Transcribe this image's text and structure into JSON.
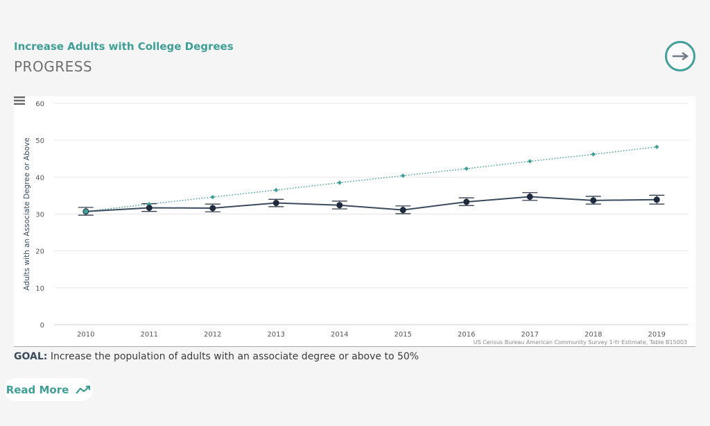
{
  "header": {
    "subtitle": "Increase Adults with College Degrees",
    "title": "PROGRESS"
  },
  "goal": {
    "label": "GOAL:",
    "text": "Increase the population of adults with an associate degree or above to 50%"
  },
  "read_more": {
    "label": "Read More",
    "icon": "trend-line-icon"
  },
  "colors": {
    "accent": "#3f9f96",
    "actual": "#3a4a5e",
    "point": "#1f2a3d"
  },
  "chart_data": {
    "type": "line",
    "title": "",
    "xlabel": "",
    "ylabel": "Adults with an Associate Degree or Above",
    "credits": "US Census Bureau American Community Survey 1-Yr Estimate, Table B15003",
    "categories": [
      "2010",
      "2011",
      "2012",
      "2013",
      "2014",
      "2015",
      "2016",
      "2017",
      "2018",
      "2019"
    ],
    "ylim": [
      0,
      60
    ],
    "yticks": [
      0,
      10,
      20,
      30,
      40,
      50,
      60
    ],
    "grid": true,
    "series": [
      {
        "kind": "target",
        "style": "dotted",
        "values": [
          30.7,
          32.7,
          34.6,
          36.5,
          38.5,
          40.4,
          42.3,
          44.3,
          46.2,
          48.2
        ]
      },
      {
        "kind": "actual",
        "style": "solid",
        "values": [
          30.7,
          31.7,
          31.6,
          33.0,
          32.4,
          31.1,
          33.3,
          34.7,
          33.7,
          33.9
        ],
        "error_low": [
          29.7,
          30.7,
          30.6,
          32.0,
          31.4,
          30.1,
          32.3,
          33.7,
          32.7,
          32.7
        ],
        "error_high": [
          31.8,
          32.8,
          32.7,
          34.0,
          33.5,
          32.2,
          34.4,
          35.8,
          34.8,
          35.1
        ]
      }
    ]
  }
}
